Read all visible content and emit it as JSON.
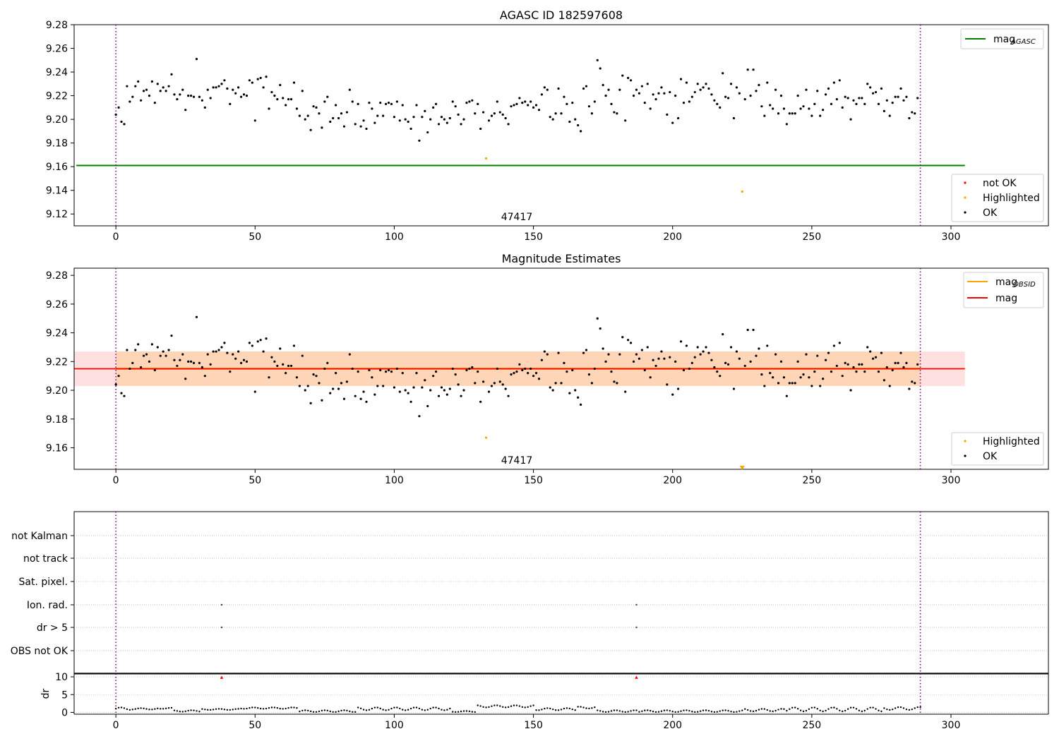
{
  "panels": {
    "top": {
      "title": "AGASC ID 182597608",
      "obsid_label": "47417"
    },
    "mid": {
      "title": "Magnitude Estimates",
      "obsid_label": "47417"
    },
    "flags": {
      "labels": [
        "not Kalman",
        "not track",
        "Sat. pixel.",
        "Ion. rad.",
        "dr > 5",
        "OBS not OK"
      ]
    },
    "dr": {
      "ylabel": "dr"
    }
  },
  "legends": {
    "top_line": {
      "label": "mag",
      "sub": "AGASC",
      "color": "#008000"
    },
    "top_points": [
      {
        "label": "not OK",
        "color": "#ff0000"
      },
      {
        "label": "Highlighted",
        "color": "#ffa500"
      },
      {
        "label": "OK",
        "color": "#000000"
      }
    ],
    "mid_lines": [
      {
        "label": "mag",
        "sub": "OBSID",
        "color": "#ffa500"
      },
      {
        "label": "mag",
        "sub": "",
        "color": "#ff0000"
      }
    ],
    "mid_points": [
      {
        "label": "Highlighted",
        "color": "#ffa500"
      },
      {
        "label": "OK",
        "color": "#000000"
      }
    ]
  },
  "chart_data": [
    {
      "type": "scatter",
      "title": "AGASC ID 182597608",
      "xlim": [
        -15,
        335
      ],
      "ylim": [
        9.11,
        9.28
      ],
      "xticks": [
        0,
        50,
        100,
        150,
        200,
        250,
        300
      ],
      "yticks": [
        9.12,
        9.14,
        9.16,
        9.18,
        9.2,
        9.22,
        9.24,
        9.26,
        9.28
      ],
      "mag_agasc": 9.161,
      "obsid_boundaries": [
        0,
        289
      ],
      "highlighted": [
        {
          "x": 133,
          "y": 9.167
        },
        {
          "x": 225,
          "y": 9.139
        }
      ],
      "ok_points": [
        [
          0,
          9.204
        ],
        [
          1,
          9.21
        ],
        [
          2,
          9.198
        ],
        [
          3,
          9.196
        ],
        [
          4,
          9.228
        ],
        [
          5,
          9.215
        ],
        [
          6,
          9.219
        ],
        [
          7,
          9.228
        ],
        [
          8,
          9.232
        ],
        [
          9,
          9.216
        ],
        [
          10,
          9.224
        ],
        [
          11,
          9.225
        ],
        [
          12,
          9.22
        ],
        [
          13,
          9.232
        ],
        [
          14,
          9.214
        ],
        [
          15,
          9.23
        ],
        [
          16,
          9.224
        ],
        [
          17,
          9.227
        ],
        [
          18,
          9.224
        ],
        [
          19,
          9.228
        ],
        [
          20,
          9.238
        ],
        [
          21,
          9.221
        ],
        [
          22,
          9.217
        ],
        [
          23,
          9.221
        ],
        [
          24,
          9.225
        ],
        [
          25,
          9.208
        ],
        [
          26,
          9.22
        ],
        [
          27,
          9.22
        ],
        [
          28,
          9.219
        ],
        [
          29,
          9.251
        ],
        [
          30,
          9.219
        ],
        [
          31,
          9.216
        ],
        [
          32,
          9.21
        ],
        [
          33,
          9.225
        ],
        [
          34,
          9.218
        ],
        [
          35,
          9.227
        ],
        [
          36,
          9.227
        ],
        [
          37,
          9.228
        ],
        [
          38,
          9.23
        ],
        [
          39,
          9.233
        ],
        [
          40,
          9.226
        ],
        [
          41,
          9.213
        ],
        [
          42,
          9.225
        ],
        [
          43,
          9.222
        ],
        [
          44,
          9.227
        ],
        [
          45,
          9.219
        ],
        [
          46,
          9.221
        ],
        [
          47,
          9.22
        ],
        [
          48,
          9.233
        ],
        [
          49,
          9.231
        ],
        [
          50,
          9.199
        ],
        [
          51,
          9.234
        ],
        [
          52,
          9.235
        ],
        [
          53,
          9.227
        ],
        [
          54,
          9.236
        ],
        [
          55,
          9.209
        ],
        [
          56,
          9.223
        ],
        [
          57,
          9.22
        ],
        [
          58,
          9.217
        ],
        [
          59,
          9.229
        ],
        [
          60,
          9.218
        ],
        [
          61,
          9.212
        ],
        [
          62,
          9.217
        ],
        [
          63,
          9.217
        ],
        [
          64,
          9.231
        ],
        [
          65,
          9.209
        ],
        [
          66,
          9.203
        ],
        [
          67,
          9.224
        ],
        [
          68,
          9.2
        ],
        [
          69,
          9.203
        ],
        [
          70,
          9.191
        ],
        [
          71,
          9.211
        ],
        [
          72,
          9.21
        ],
        [
          73,
          9.205
        ],
        [
          74,
          9.193
        ],
        [
          75,
          9.215
        ],
        [
          76,
          9.219
        ],
        [
          77,
          9.198
        ],
        [
          78,
          9.201
        ],
        [
          79,
          9.212
        ],
        [
          80,
          9.201
        ],
        [
          81,
          9.205
        ],
        [
          82,
          9.194
        ],
        [
          83,
          9.206
        ],
        [
          84,
          9.225
        ],
        [
          85,
          9.215
        ],
        [
          86,
          9.196
        ],
        [
          87,
          9.213
        ],
        [
          88,
          9.194
        ],
        [
          89,
          9.199
        ],
        [
          90,
          9.192
        ],
        [
          91,
          9.214
        ],
        [
          92,
          9.209
        ],
        [
          93,
          9.197
        ],
        [
          94,
          9.203
        ],
        [
          95,
          9.214
        ],
        [
          96,
          9.203
        ],
        [
          97,
          9.213
        ],
        [
          98,
          9.214
        ],
        [
          99,
          9.213
        ],
        [
          100,
          9.202
        ],
        [
          101,
          9.215
        ],
        [
          102,
          9.199
        ],
        [
          103,
          9.212
        ],
        [
          104,
          9.2
        ],
        [
          105,
          9.198
        ],
        [
          106,
          9.192
        ],
        [
          107,
          9.202
        ],
        [
          108,
          9.212
        ],
        [
          109,
          9.182
        ],
        [
          110,
          9.202
        ],
        [
          111,
          9.207
        ],
        [
          112,
          9.189
        ],
        [
          113,
          9.2
        ],
        [
          114,
          9.21
        ],
        [
          115,
          9.213
        ],
        [
          116,
          9.196
        ],
        [
          117,
          9.202
        ],
        [
          118,
          9.2
        ],
        [
          119,
          9.197
        ],
        [
          120,
          9.201
        ],
        [
          121,
          9.215
        ],
        [
          122,
          9.211
        ],
        [
          123,
          9.204
        ],
        [
          124,
          9.196
        ],
        [
          125,
          9.2
        ],
        [
          126,
          9.214
        ],
        [
          127,
          9.215
        ],
        [
          128,
          9.216
        ],
        [
          129,
          9.205
        ],
        [
          130,
          9.213
        ],
        [
          131,
          9.192
        ],
        [
          132,
          9.206
        ],
        [
          134,
          9.199
        ],
        [
          135,
          9.203
        ],
        [
          136,
          9.205
        ],
        [
          137,
          9.215
        ],
        [
          138,
          9.206
        ],
        [
          139,
          9.204
        ],
        [
          140,
          9.201
        ],
        [
          141,
          9.196
        ],
        [
          142,
          9.211
        ],
        [
          143,
          9.212
        ],
        [
          144,
          9.213
        ],
        [
          145,
          9.218
        ],
        [
          146,
          9.214
        ],
        [
          147,
          9.215
        ],
        [
          148,
          9.212
        ],
        [
          149,
          9.215
        ],
        [
          150,
          9.21
        ],
        [
          151,
          9.212
        ],
        [
          152,
          9.208
        ],
        [
          153,
          9.221
        ],
        [
          154,
          9.227
        ],
        [
          155,
          9.225
        ],
        [
          156,
          9.202
        ],
        [
          157,
          9.2
        ],
        [
          158,
          9.205
        ],
        [
          159,
          9.226
        ],
        [
          160,
          9.205
        ],
        [
          161,
          9.219
        ],
        [
          162,
          9.213
        ],
        [
          163,
          9.198
        ],
        [
          164,
          9.214
        ],
        [
          165,
          9.2
        ],
        [
          166,
          9.195
        ],
        [
          167,
          9.19
        ],
        [
          168,
          9.226
        ],
        [
          169,
          9.228
        ],
        [
          170,
          9.211
        ],
        [
          171,
          9.205
        ],
        [
          172,
          9.215
        ],
        [
          173,
          9.25
        ],
        [
          174,
          9.243
        ],
        [
          175,
          9.229
        ],
        [
          176,
          9.22
        ],
        [
          177,
          9.225
        ],
        [
          178,
          9.213
        ],
        [
          179,
          9.206
        ],
        [
          180,
          9.205
        ],
        [
          181,
          9.225
        ],
        [
          182,
          9.237
        ],
        [
          183,
          9.199
        ],
        [
          184,
          9.235
        ],
        [
          185,
          9.233
        ],
        [
          186,
          9.22
        ],
        [
          187,
          9.225
        ],
        [
          188,
          9.222
        ],
        [
          189,
          9.228
        ],
        [
          190,
          9.214
        ],
        [
          191,
          9.23
        ],
        [
          192,
          9.209
        ],
        [
          193,
          9.221
        ],
        [
          194,
          9.217
        ],
        [
          195,
          9.222
        ],
        [
          196,
          9.227
        ],
        [
          197,
          9.222
        ],
        [
          198,
          9.204
        ],
        [
          199,
          9.223
        ],
        [
          200,
          9.197
        ],
        [
          201,
          9.22
        ],
        [
          202,
          9.201
        ],
        [
          203,
          9.234
        ],
        [
          204,
          9.214
        ],
        [
          205,
          9.231
        ],
        [
          206,
          9.215
        ],
        [
          207,
          9.219
        ],
        [
          208,
          9.223
        ],
        [
          209,
          9.23
        ],
        [
          210,
          9.225
        ],
        [
          211,
          9.227
        ],
        [
          212,
          9.23
        ],
        [
          213,
          9.226
        ],
        [
          214,
          9.221
        ],
        [
          215,
          9.216
        ],
        [
          216,
          9.213
        ],
        [
          217,
          9.21
        ],
        [
          218,
          9.239
        ],
        [
          219,
          9.219
        ],
        [
          220,
          9.218
        ],
        [
          221,
          9.23
        ],
        [
          222,
          9.201
        ],
        [
          223,
          9.227
        ],
        [
          224,
          9.222
        ],
        [
          226,
          9.217
        ],
        [
          227,
          9.242
        ],
        [
          228,
          9.22
        ],
        [
          229,
          9.242
        ],
        [
          230,
          9.224
        ],
        [
          231,
          9.229
        ],
        [
          232,
          9.211
        ],
        [
          233,
          9.203
        ],
        [
          234,
          9.231
        ],
        [
          235,
          9.212
        ],
        [
          236,
          9.209
        ],
        [
          237,
          9.225
        ],
        [
          238,
          9.205
        ],
        [
          239,
          9.22
        ],
        [
          240,
          9.209
        ],
        [
          241,
          9.196
        ],
        [
          242,
          9.205
        ],
        [
          243,
          9.205
        ],
        [
          244,
          9.205
        ],
        [
          245,
          9.22
        ],
        [
          246,
          9.209
        ],
        [
          247,
          9.211
        ],
        [
          248,
          9.225
        ],
        [
          249,
          9.209
        ],
        [
          250,
          9.203
        ],
        [
          251,
          9.213
        ],
        [
          252,
          9.224
        ],
        [
          253,
          9.203
        ],
        [
          254,
          9.208
        ],
        [
          255,
          9.221
        ],
        [
          256,
          9.226
        ],
        [
          257,
          9.213
        ],
        [
          258,
          9.231
        ],
        [
          259,
          9.217
        ],
        [
          260,
          9.233
        ],
        [
          261,
          9.21
        ],
        [
          262,
          9.219
        ],
        [
          263,
          9.218
        ],
        [
          264,
          9.2
        ],
        [
          265,
          9.216
        ],
        [
          266,
          9.213
        ],
        [
          267,
          9.218
        ],
        [
          268,
          9.218
        ],
        [
          269,
          9.213
        ],
        [
          270,
          9.23
        ],
        [
          271,
          9.227
        ],
        [
          272,
          9.222
        ],
        [
          273,
          9.223
        ],
        [
          274,
          9.213
        ],
        [
          275,
          9.226
        ],
        [
          276,
          9.207
        ],
        [
          277,
          9.216
        ],
        [
          278,
          9.203
        ],
        [
          279,
          9.214
        ],
        [
          280,
          9.219
        ],
        [
          281,
          9.219
        ],
        [
          282,
          9.226
        ],
        [
          283,
          9.216
        ],
        [
          284,
          9.219
        ],
        [
          285,
          9.201
        ],
        [
          286,
          9.206
        ],
        [
          287,
          9.205
        ],
        [
          288,
          9.218
        ]
      ]
    },
    {
      "type": "scatter",
      "title": "Magnitude Estimates",
      "xlim": [
        -15,
        335
      ],
      "ylim": [
        9.145,
        9.285
      ],
      "xticks": [
        0,
        50,
        100,
        150,
        200,
        250,
        300
      ],
      "yticks": [
        9.16,
        9.18,
        9.2,
        9.22,
        9.24,
        9.26,
        9.28
      ],
      "mag": 9.215,
      "mag_obsid": 9.215,
      "mag_band": [
        9.203,
        9.227
      ],
      "obsid_boundaries": [
        0,
        289
      ],
      "highlighted": [
        {
          "x": 133,
          "y": 9.167
        }
      ],
      "off_scale_marker": {
        "x": 225,
        "y": 9.146
      },
      "ok_points": "same as top panel"
    },
    {
      "type": "scatter",
      "title": "",
      "categories": [
        "not Kalman",
        "not track",
        "Sat. pixel.",
        "Ion. rad.",
        "dr > 5",
        "OBS not OK"
      ],
      "flag_points": [
        {
          "x": 38,
          "flags": [
            "Ion. rad.",
            "dr > 5"
          ]
        },
        {
          "x": 187,
          "flags": [
            "Ion. rad.",
            "dr > 5"
          ]
        }
      ],
      "obsid_boundaries": [
        0,
        289
      ]
    },
    {
      "type": "scatter",
      "ylabel": "dr",
      "xlim": [
        -15,
        335
      ],
      "ylim": [
        -0.5,
        11
      ],
      "xticks": [
        0,
        50,
        100,
        150,
        200,
        250,
        300
      ],
      "yticks": [
        0,
        5,
        10
      ],
      "high_points": [
        {
          "x": 38,
          "y": 9.8
        },
        {
          "x": 187,
          "y": 9.8
        }
      ],
      "segments": [
        [
          0,
          5,
          0.7,
          1.4
        ],
        [
          6,
          14,
          0.8,
          1.2
        ],
        [
          15,
          20,
          1.0,
          1.3
        ],
        [
          21,
          30,
          0.2,
          0.6
        ],
        [
          31,
          44,
          0.7,
          1.0
        ],
        [
          45,
          65,
          1.0,
          1.4
        ],
        [
          66,
          86,
          0.1,
          0.6
        ],
        [
          87,
          120,
          0.6,
          1.4
        ],
        [
          121,
          129,
          0.1,
          0.4
        ],
        [
          130,
          150,
          1.4,
          2.0
        ],
        [
          151,
          165,
          0.6,
          1.2
        ],
        [
          166,
          172,
          1.1,
          1.6
        ],
        [
          173,
          187,
          0.1,
          0.6
        ],
        [
          188,
          225,
          0.1,
          0.6
        ],
        [
          226,
          240,
          0.3,
          1.0
        ],
        [
          241,
          275,
          0.3,
          1.4
        ],
        [
          276,
          289,
          0.7,
          1.5
        ]
      ]
    }
  ]
}
